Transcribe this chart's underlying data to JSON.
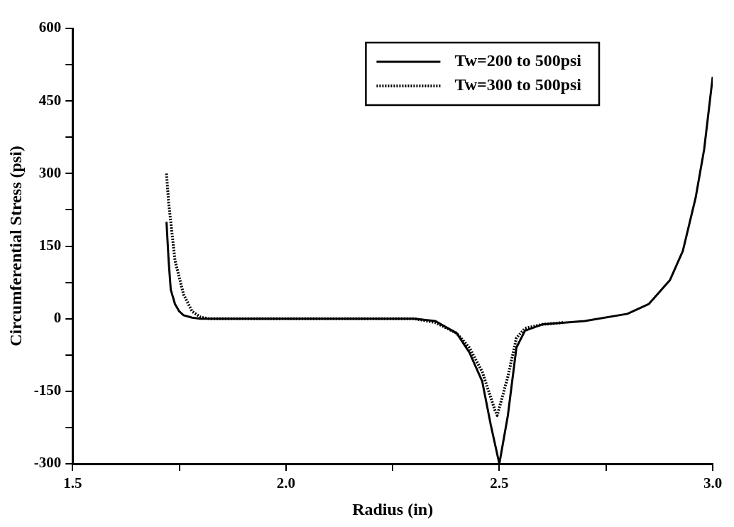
{
  "chart_data": {
    "type": "line",
    "xlabel": "Radius (in)",
    "ylabel": "Circumferential Stress (psi)",
    "xlim": [
      1.5,
      3.0
    ],
    "ylim": [
      -300,
      600
    ],
    "xticks": [
      {
        "value": 1.5,
        "label": "1.5"
      },
      {
        "value": 1.75,
        "label": null
      },
      {
        "value": 2.0,
        "label": "2.0"
      },
      {
        "value": 2.25,
        "label": null
      },
      {
        "value": 2.5,
        "label": "2.5"
      },
      {
        "value": 2.75,
        "label": null
      },
      {
        "value": 3.0,
        "label": "3.0"
      }
    ],
    "yticks": [
      -300,
      {
        "value": -225,
        "label": null
      },
      -150,
      {
        "value": -75,
        "label": null
      },
      0,
      {
        "value": 75,
        "label": null
      },
      150,
      {
        "value": 225,
        "label": null
      },
      300,
      {
        "value": 375,
        "label": null
      },
      450,
      {
        "value": 525,
        "label": null
      },
      600
    ],
    "grid": false,
    "legend": "top right",
    "marker": "none",
    "series": [
      {
        "name": "Tw=200 to 500psi",
        "color": "#000000",
        "line_style": "solid",
        "x": [
          1.72,
          1.725,
          1.73,
          1.74,
          1.75,
          1.76,
          1.78,
          1.8,
          2.0,
          2.3,
          2.35,
          2.4,
          2.43,
          2.46,
          2.48,
          2.5,
          2.52,
          2.54,
          2.56,
          2.6,
          2.7,
          2.8,
          2.85,
          2.9,
          2.93,
          2.96,
          2.98,
          3.0
        ],
        "values": [
          200,
          120,
          60,
          30,
          15,
          7,
          2,
          0,
          0,
          0,
          -5,
          -30,
          -70,
          -130,
          -220,
          -300,
          -200,
          -60,
          -25,
          -12,
          -5,
          10,
          30,
          80,
          140,
          250,
          350,
          500
        ]
      },
      {
        "name": "Tw=300 to 500psi",
        "color": "#000000",
        "line_style": "dotted",
        "x": [
          1.72,
          1.725,
          1.73,
          1.74,
          1.76,
          1.78,
          1.8,
          1.82,
          2.0,
          2.3,
          2.35,
          2.4,
          2.43,
          2.46,
          2.49,
          2.495,
          2.52,
          2.54,
          2.56,
          2.6,
          2.65
        ],
        "values": [
          300,
          240,
          200,
          120,
          50,
          15,
          3,
          0,
          0,
          0,
          -8,
          -30,
          -60,
          -110,
          -190,
          -200,
          -120,
          -40,
          -20,
          -12,
          -8
        ]
      }
    ]
  }
}
